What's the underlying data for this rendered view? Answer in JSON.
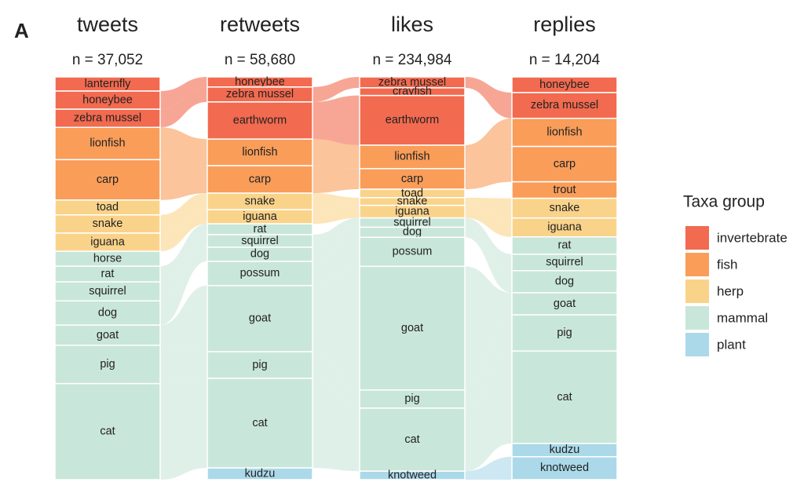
{
  "panel_label": "A",
  "chart_data": {
    "type": "alluvial",
    "legend": {
      "title": "Taxa group",
      "items": [
        {
          "name": "invertebrate",
          "color": "#f26a4f"
        },
        {
          "name": "fish",
          "color": "#f99d59"
        },
        {
          "name": "herp",
          "color": "#fad38a"
        },
        {
          "name": "mammal",
          "color": "#c9e6da"
        },
        {
          "name": "plant",
          "color": "#abd9e9"
        }
      ]
    },
    "columns": [
      {
        "title": "tweets",
        "n_label": "n = 37,052",
        "names": [
          "lanternfly",
          "honeybee",
          "zebra mussel",
          "lionfish",
          "carp",
          "toad",
          "snake",
          "iguana",
          "horse",
          "rat",
          "squirrel",
          "dog",
          "goat",
          "pig",
          "cat"
        ],
        "groups": [
          "invertebrate",
          "invertebrate",
          "invertebrate",
          "fish",
          "fish",
          "herp",
          "herp",
          "herp",
          "mammal",
          "mammal",
          "mammal",
          "mammal",
          "mammal",
          "mammal",
          "mammal"
        ],
        "values": [
          3.5,
          4.5,
          4.5,
          8,
          10,
          3.7,
          4.5,
          4.5,
          3.7,
          3.9,
          4.7,
          6,
          5,
          9.5,
          23.8
        ]
      },
      {
        "title": "retweets",
        "n_label": "n = 58,680",
        "names": [
          "honeybee",
          "zebra mussel",
          "earthworm",
          "lionfish",
          "carp",
          "snake",
          "iguana",
          "rat",
          "squirrel",
          "dog",
          "possum",
          "goat",
          "pig",
          "cat",
          "kudzu"
        ],
        "groups": [
          "invertebrate",
          "invertebrate",
          "invertebrate",
          "fish",
          "fish",
          "herp",
          "herp",
          "mammal",
          "mammal",
          "mammal",
          "mammal",
          "mammal",
          "mammal",
          "mammal",
          "plant"
        ],
        "values": [
          2.5,
          3.7,
          9.2,
          6.6,
          6.8,
          4.1,
          3.5,
          2.7,
          3.1,
          3.5,
          6,
          16.4,
          6.6,
          22.2,
          2.9
        ]
      },
      {
        "title": "likes",
        "n_label": "n = 234,984",
        "names": [
          "zebra mussel",
          "crayfish",
          "earthworm",
          "lionfish",
          "carp",
          "toad",
          "snake",
          "iguana",
          "squirrel",
          "dog",
          "possum",
          "goat",
          "pig",
          "cat",
          "knotweed"
        ],
        "groups": [
          "invertebrate",
          "invertebrate",
          "invertebrate",
          "fish",
          "fish",
          "herp",
          "herp",
          "herp",
          "mammal",
          "mammal",
          "mammal",
          "mammal",
          "mammal",
          "mammal",
          "plant"
        ],
        "values": [
          2.7,
          1.9,
          12.3,
          5.8,
          5.1,
          2.1,
          1.9,
          3.1,
          2.3,
          2.5,
          7.2,
          30.6,
          4.5,
          15.6,
          2.1
        ]
      },
      {
        "title": "replies",
        "n_label": "n = 14,204",
        "names": [
          "honeybee",
          "zebra mussel",
          "lionfish",
          "carp",
          "trout",
          "snake",
          "iguana",
          "rat",
          "squirrel",
          "dog",
          "goat",
          "pig",
          "cat",
          "kudzu",
          "knotweed"
        ],
        "groups": [
          "invertebrate",
          "invertebrate",
          "fish",
          "fish",
          "fish",
          "herp",
          "herp",
          "mammal",
          "mammal",
          "mammal",
          "mammal",
          "mammal",
          "mammal",
          "plant",
          "plant"
        ],
        "values": [
          3.9,
          6.4,
          7,
          8.8,
          4.1,
          4.9,
          4.7,
          4.3,
          4.1,
          5.5,
          5.5,
          9,
          23,
          3.3,
          5.7
        ]
      }
    ]
  }
}
